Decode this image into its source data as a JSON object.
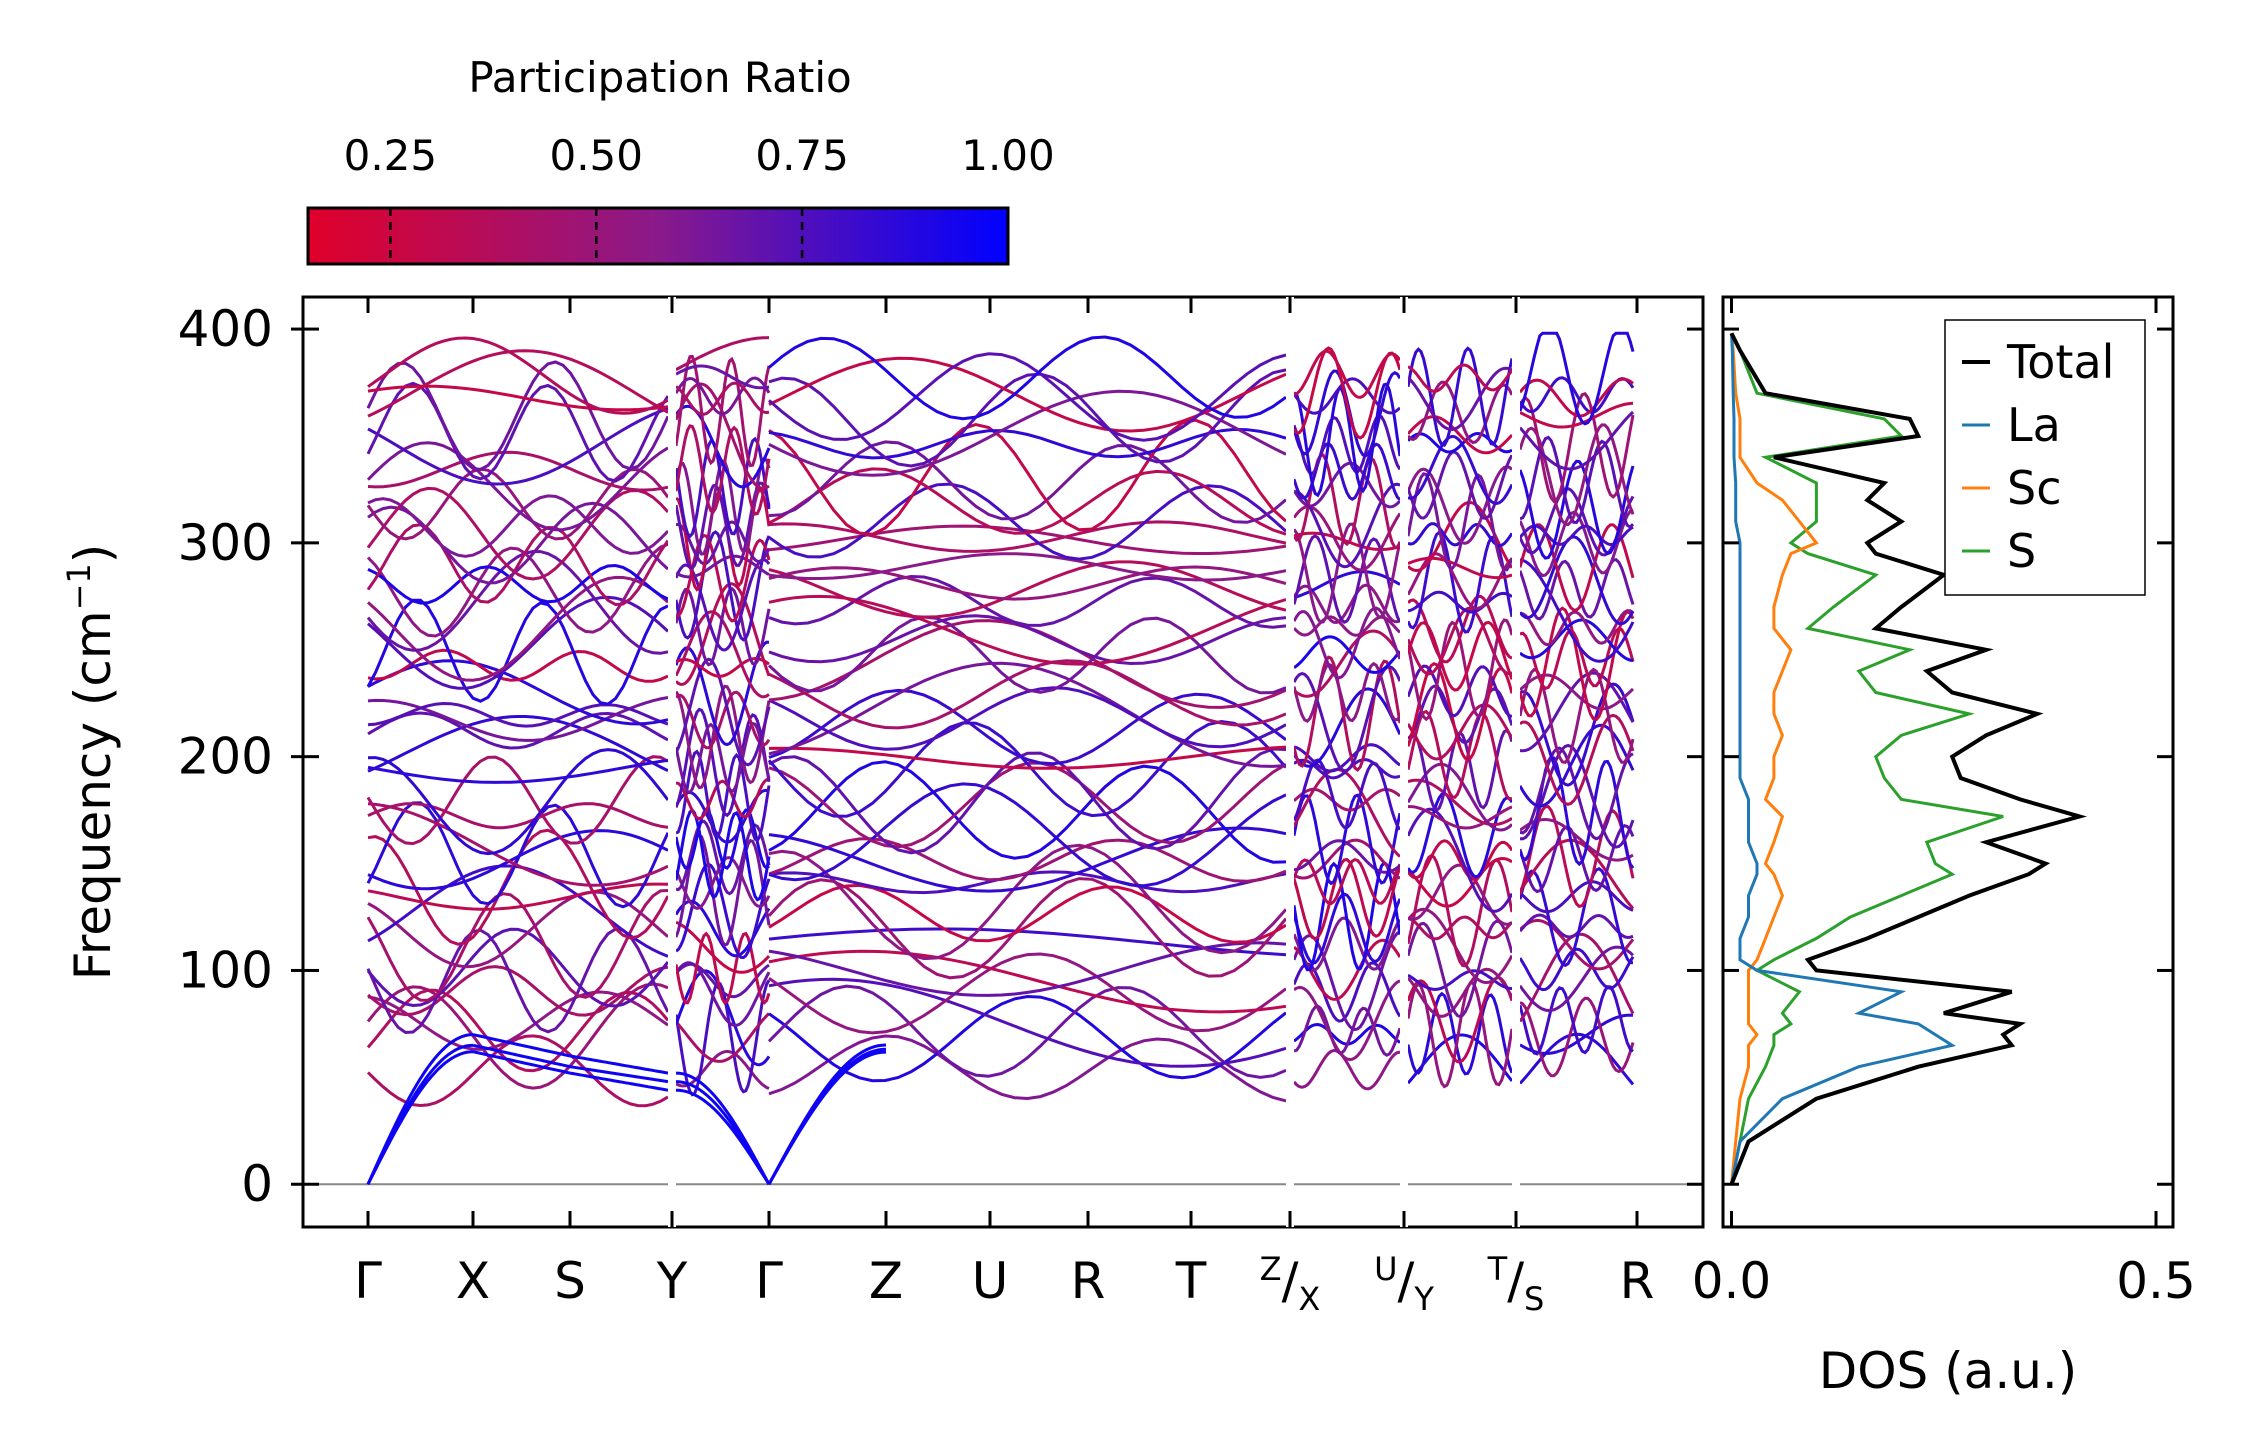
{
  "chart_data": [
    {
      "type": "colorbar",
      "title": "Participation Ratio",
      "range": [
        0.15,
        1.0
      ],
      "ticks": [
        0.25,
        0.5,
        0.75,
        1.0
      ],
      "tick_labels": [
        "0.25",
        "0.50",
        "0.75",
        "1.00"
      ],
      "color_low": "#e0002a",
      "color_mid": "#8a1a8a",
      "color_high": "#0000ff"
    },
    {
      "type": "line",
      "name": "phonon-dispersion",
      "ylabel": "Frequency (cm",
      "ylabel_sup": "−1",
      "ylabel_close": ")",
      "ylim": [
        -20,
        415
      ],
      "yticks": [
        0,
        100,
        200,
        300,
        400
      ],
      "ytick_labels": [
        "0",
        "100",
        "200",
        "300",
        "400"
      ],
      "kpoints": [
        0,
        1,
        2,
        3,
        4,
        5,
        6,
        7,
        8,
        9,
        10,
        11,
        12
      ],
      "kpoint_labels": [
        {
          "main": "Γ"
        },
        {
          "main": "X"
        },
        {
          "main": "S"
        },
        {
          "main": "Y"
        },
        {
          "main": "Γ"
        },
        {
          "main": "Z"
        },
        {
          "main": "U"
        },
        {
          "main": "R"
        },
        {
          "main": "T"
        },
        {
          "sup": "Z",
          "main": "/",
          "sub": "X"
        },
        {
          "sup": "U",
          "main": "/",
          "sub": "Y"
        },
        {
          "sup": "T",
          "main": "/",
          "sub": "S"
        },
        {
          "main": "R"
        }
      ],
      "segments": [
        [
          0,
          3
        ],
        [
          3,
          4
        ],
        [
          4,
          9
        ],
        [
          9,
          10
        ],
        [
          10,
          11
        ],
        [
          11,
          12
        ]
      ],
      "representative_band_frequencies_at_kpoints": {
        "acoustic_1": [
          0,
          62,
          52,
          44,
          0
        ],
        "acoustic_2": [
          0,
          65,
          55,
          48,
          0
        ],
        "acoustic_3": [
          0,
          70,
          60,
          52,
          0
        ],
        "top_band": [
          378,
          365,
          362,
          352,
          396
        ]
      },
      "colored_by": "Participation Ratio"
    },
    {
      "type": "line",
      "name": "density-of-states",
      "xlabel": "DOS (a.u.)",
      "xlim": [
        -0.01,
        0.52
      ],
      "xticks": [
        0.0,
        0.5
      ],
      "xtick_labels": [
        "0.0",
        "0.5"
      ],
      "ylim": [
        -20,
        415
      ],
      "legend": "top-right",
      "series": [
        {
          "name": "Total",
          "color": "#000000",
          "frequency": [
            0,
            20,
            40,
            55,
            65,
            70,
            75,
            80,
            90,
            100,
            105,
            115,
            125,
            135,
            145,
            150,
            160,
            172,
            180,
            190,
            200,
            210,
            220,
            230,
            240,
            250,
            260,
            270,
            285,
            295,
            300,
            310,
            320,
            328,
            340,
            350,
            358,
            370,
            390,
            398
          ],
          "dos": [
            0,
            0.02,
            0.1,
            0.22,
            0.33,
            0.32,
            0.34,
            0.25,
            0.33,
            0.1,
            0.09,
            0.16,
            0.22,
            0.28,
            0.35,
            0.37,
            0.3,
            0.41,
            0.34,
            0.27,
            0.26,
            0.3,
            0.36,
            0.26,
            0.23,
            0.3,
            0.17,
            0.2,
            0.25,
            0.17,
            0.16,
            0.2,
            0.16,
            0.18,
            0.05,
            0.22,
            0.21,
            0.04,
            0.01,
            0
          ]
        },
        {
          "name": "La",
          "color": "#1f77b4",
          "frequency": [
            0,
            20,
            40,
            55,
            65,
            70,
            75,
            80,
            90,
            100,
            105,
            115,
            125,
            135,
            145,
            150,
            160,
            172,
            180,
            190,
            200,
            210,
            220,
            230,
            240,
            250,
            260,
            270,
            285,
            295,
            300,
            310,
            320,
            328,
            340,
            350,
            358,
            370,
            390,
            398
          ],
          "dos": [
            0,
            0.01,
            0.06,
            0.15,
            0.26,
            0.24,
            0.22,
            0.15,
            0.2,
            0.03,
            0.01,
            0.01,
            0.02,
            0.02,
            0.03,
            0.03,
            0.02,
            0.02,
            0.02,
            0.01,
            0.01,
            0.01,
            0.01,
            0.01,
            0.01,
            0.01,
            0.01,
            0.01,
            0.01,
            0.01,
            0.01,
            0.005,
            0.005,
            0.005,
            0.003,
            0.003,
            0.003,
            0.002,
            0.001,
            0
          ]
        },
        {
          "name": "Sc",
          "color": "#ff7f0e",
          "frequency": [
            0,
            20,
            40,
            55,
            65,
            70,
            75,
            80,
            90,
            100,
            105,
            115,
            125,
            135,
            145,
            150,
            160,
            172,
            180,
            190,
            200,
            210,
            220,
            230,
            240,
            250,
            260,
            270,
            285,
            295,
            300,
            310,
            320,
            328,
            340,
            350,
            358,
            370,
            390,
            398
          ],
          "dos": [
            0,
            0.005,
            0.01,
            0.02,
            0.02,
            0.03,
            0.02,
            0.02,
            0.02,
            0.02,
            0.03,
            0.04,
            0.05,
            0.06,
            0.05,
            0.04,
            0.05,
            0.06,
            0.04,
            0.05,
            0.05,
            0.06,
            0.05,
            0.05,
            0.06,
            0.07,
            0.05,
            0.05,
            0.06,
            0.07,
            0.1,
            0.08,
            0.06,
            0.03,
            0.01,
            0.01,
            0.01,
            0.005,
            0.002,
            0
          ]
        },
        {
          "name": "S",
          "color": "#2ca02c",
          "frequency": [
            0,
            20,
            40,
            55,
            65,
            70,
            75,
            80,
            90,
            100,
            105,
            115,
            125,
            135,
            145,
            150,
            160,
            172,
            180,
            190,
            200,
            210,
            220,
            230,
            240,
            250,
            260,
            270,
            285,
            295,
            300,
            310,
            320,
            328,
            340,
            350,
            358,
            370,
            390,
            398
          ],
          "dos": [
            0,
            0.01,
            0.02,
            0.04,
            0.05,
            0.05,
            0.07,
            0.06,
            0.08,
            0.03,
            0.05,
            0.1,
            0.14,
            0.2,
            0.26,
            0.24,
            0.23,
            0.32,
            0.2,
            0.18,
            0.17,
            0.2,
            0.28,
            0.17,
            0.15,
            0.21,
            0.09,
            0.12,
            0.17,
            0.09,
            0.07,
            0.1,
            0.1,
            0.1,
            0.04,
            0.2,
            0.18,
            0.03,
            0.01,
            0
          ]
        }
      ]
    }
  ]
}
